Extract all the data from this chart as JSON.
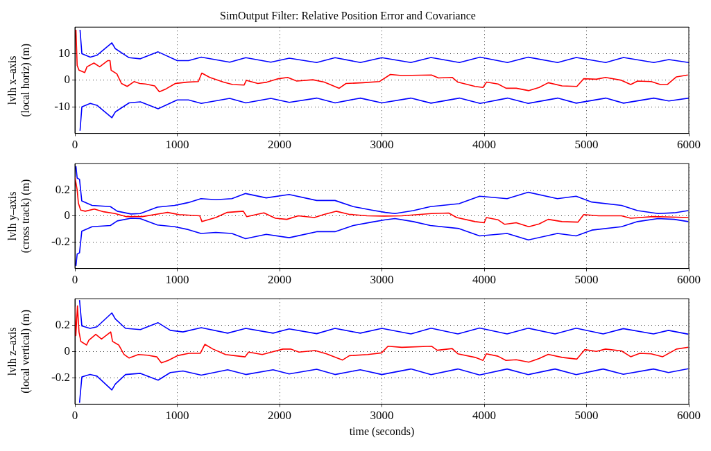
{
  "chart_data": [
    {
      "type": "line",
      "title": "SimOutput Filter: Relative Position Error and Covariance",
      "ylabel": "lvlh x–axis\n(local horiz) (m)",
      "xlim": [
        0,
        6000
      ],
      "xticks": [
        0,
        1000,
        2000,
        3000,
        4000,
        5000,
        6000
      ],
      "ylim": [
        -20,
        20
      ],
      "yticks": [
        -10,
        0,
        10
      ],
      "grid": true,
      "legend": false,
      "series": [
        {
          "color": "#0000ff",
          "x": [
            50,
            68,
            150,
            215,
            361,
            395,
            530,
            640,
            813,
            1000,
            1110,
            1235,
            1513,
            1670,
            1915,
            2095,
            2363,
            2543,
            2790,
            3000,
            3283,
            3480,
            3758,
            3960,
            4228,
            4430,
            4718,
            4900,
            5188,
            5362,
            5658,
            5805,
            6000
          ],
          "values": [
            19,
            10,
            8.7,
            9.4,
            14.1,
            11.9,
            8.5,
            8.1,
            10.7,
            7.4,
            7.4,
            8.7,
            6.8,
            8.5,
            6.8,
            8.3,
            6.7,
            8.5,
            6.7,
            8.5,
            6.7,
            8.6,
            6.7,
            8.7,
            6.7,
            8.7,
            6.7,
            8.6,
            6.7,
            8.6,
            6.7,
            7.8,
            6.7
          ]
        },
        {
          "color": "#0000ff",
          "x": [
            50,
            68,
            150,
            215,
            361,
            395,
            530,
            640,
            813,
            1000,
            1110,
            1235,
            1513,
            1670,
            1915,
            2095,
            2363,
            2543,
            2790,
            3000,
            3283,
            3480,
            3758,
            3960,
            4228,
            4430,
            4718,
            4900,
            5188,
            5362,
            5658,
            5805,
            6000
          ],
          "values": [
            -19,
            -10,
            -8.7,
            -9.4,
            -14.1,
            -11.9,
            -8.5,
            -8.1,
            -10.7,
            -7.4,
            -7.4,
            -8.7,
            -6.8,
            -8.5,
            -6.8,
            -8.3,
            -6.7,
            -8.5,
            -6.7,
            -8.5,
            -6.7,
            -8.6,
            -6.7,
            -8.7,
            -6.7,
            -8.7,
            -6.7,
            -8.6,
            -6.7,
            -8.6,
            -6.7,
            -7.8,
            -6.7
          ]
        },
        {
          "color": "#ff0000",
          "x": [
            10,
            22,
            40,
            96,
            118,
            186,
            242,
            320,
            343,
            354,
            410,
            455,
            511,
            578,
            634,
            690,
            780,
            825,
            892,
            982,
            1094,
            1206,
            1240,
            1318,
            1452,
            1541,
            1653,
            1676,
            1788,
            1877,
            1989,
            2079,
            2168,
            2325,
            2437,
            2583,
            2650,
            2818,
            2975,
            3083,
            3195,
            3485,
            3553,
            3687,
            3743,
            3911,
            3989,
            4023,
            4135,
            4214,
            4314,
            4437,
            4537,
            4627,
            4761,
            4906,
            4973,
            5096,
            5186,
            5342,
            5432,
            5499,
            5633,
            5722,
            5789,
            5879,
            5991
          ],
          "values": [
            19,
            5.6,
            3.8,
            2.9,
            5.1,
            6.5,
            5.1,
            7.4,
            7.4,
            3.8,
            2.4,
            -1.2,
            -2.3,
            -0.5,
            -1.2,
            -1.4,
            -2.1,
            -4.3,
            -3.2,
            -1.2,
            -0.7,
            -0.5,
            2.7,
            1.1,
            -0.7,
            -1.6,
            -1.8,
            0,
            -1.2,
            -0.7,
            0.6,
            1.1,
            -0.3,
            0.2,
            -0.7,
            -3.0,
            -1.2,
            -0.9,
            -0.5,
            2.2,
            1.8,
            2.0,
            0.9,
            1.1,
            -0.7,
            -2.3,
            -2.7,
            -0.7,
            -1.4,
            -3.0,
            -3.0,
            -3.9,
            -2.7,
            -0.9,
            -2.1,
            -2.3,
            0.6,
            0.4,
            1.1,
            0,
            -1.6,
            -0.3,
            -0.5,
            -1.6,
            -1.6,
            1.3,
            2.0
          ]
        }
      ]
    },
    {
      "type": "line",
      "ylabel": "lvlh y–axis\n(cross track) (m)",
      "xlim": [
        0,
        6000
      ],
      "xticks": [
        0,
        1000,
        2000,
        3000,
        4000,
        5000,
        6000
      ],
      "ylim": [
        -0.4,
        0.4
      ],
      "yticks": [
        -0.2,
        0,
        0.2
      ],
      "grid": true,
      "legend": false,
      "series": [
        {
          "color": "#0000ff",
          "x": [
            10,
            22,
            45,
            67,
            168,
            347,
            414,
            548,
            638,
            806,
            974,
            1108,
            1232,
            1377,
            1534,
            1668,
            1870,
            2094,
            2363,
            2542,
            2721,
            2900,
            3034,
            3128,
            3307,
            3474,
            3754,
            3955,
            4224,
            4430,
            4716,
            4899,
            5052,
            5342,
            5499,
            5700,
            5857,
            5995
          ],
          "values": [
            0.38,
            0.29,
            0.28,
            0.116,
            0.081,
            0.072,
            0.037,
            0.016,
            0.019,
            0.068,
            0.081,
            0.103,
            0.133,
            0.125,
            0.133,
            0.172,
            0.139,
            0.165,
            0.119,
            0.119,
            0.072,
            0.046,
            0.028,
            0.019,
            0.042,
            0.072,
            0.095,
            0.151,
            0.133,
            0.182,
            0.133,
            0.151,
            0.107,
            0.081,
            0.042,
            0.019,
            0.025,
            0.042
          ]
        },
        {
          "color": "#0000ff",
          "x": [
            10,
            22,
            45,
            67,
            168,
            347,
            414,
            548,
            638,
            806,
            974,
            1108,
            1232,
            1377,
            1534,
            1668,
            1870,
            2094,
            2363,
            2542,
            2721,
            2900,
            3034,
            3128,
            3307,
            3474,
            3754,
            3955,
            4224,
            4430,
            4716,
            4899,
            5052,
            5342,
            5499,
            5700,
            5857,
            5995
          ],
          "values": [
            -0.38,
            -0.29,
            -0.28,
            -0.116,
            -0.081,
            -0.072,
            -0.037,
            -0.016,
            -0.019,
            -0.068,
            -0.081,
            -0.103,
            -0.133,
            -0.125,
            -0.133,
            -0.172,
            -0.139,
            -0.165,
            -0.119,
            -0.119,
            -0.072,
            -0.046,
            -0.028,
            -0.019,
            -0.042,
            -0.072,
            -0.095,
            -0.151,
            -0.133,
            -0.182,
            -0.133,
            -0.151,
            -0.107,
            -0.081,
            -0.042,
            -0.019,
            -0.025,
            -0.042
          ]
        },
        {
          "color": "#ff0000",
          "x": [
            0,
            22,
            34,
            56,
            101,
            190,
            280,
            392,
            503,
            660,
            839,
            906,
            1018,
            1220,
            1242,
            1377,
            1489,
            1646,
            1679,
            1847,
            1959,
            2071,
            2183,
            2340,
            2430,
            2553,
            2676,
            2855,
            3023,
            3195,
            3485,
            3653,
            3732,
            3911,
            4000,
            4022,
            4134,
            4201,
            4313,
            4436,
            4537,
            4626,
            4761,
            4917,
            4973,
            5118,
            5342,
            5432,
            5655,
            5995
          ],
          "values": [
            0.3,
            0.2,
            0.098,
            0.046,
            0.037,
            0.054,
            0.033,
            0.019,
            -0.004,
            -0.004,
            0.019,
            0.028,
            0.011,
            0.002,
            -0.042,
            -0.011,
            0.028,
            0.037,
            -0.004,
            0.025,
            -0.016,
            -0.025,
            0.002,
            -0.011,
            0.011,
            0.037,
            0.014,
            0.002,
            0,
            0.002,
            0.019,
            0.023,
            -0.011,
            -0.042,
            -0.051,
            -0.011,
            -0.028,
            -0.063,
            -0.051,
            -0.081,
            -0.06,
            -0.025,
            -0.042,
            -0.046,
            0.011,
            0.002,
            0.002,
            -0.016,
            -0.004,
            -0.011
          ]
        }
      ]
    },
    {
      "type": "line",
      "ylabel": "lvlh z–axis\n(local vertical) (m)",
      "xlabel": "time (seconds)",
      "xlim": [
        0,
        6000
      ],
      "xticks": [
        0,
        1000,
        2000,
        3000,
        4000,
        5000,
        6000
      ],
      "ylim": [
        -0.4,
        0.4
      ],
      "yticks": [
        -0.2,
        0,
        0.2
      ],
      "grid": true,
      "legend": false,
      "series": [
        {
          "color": "#0000ff",
          "x": [
            45,
            68,
            148,
            215,
            361,
            395,
            495,
            640,
            813,
            933,
            1056,
            1235,
            1493,
            1670,
            1937,
            2094,
            2363,
            2542,
            2789,
            3000,
            3284,
            3481,
            3743,
            3955,
            4224,
            4430,
            4693,
            4899,
            5163,
            5360,
            5655,
            5801,
            5995
          ],
          "values": [
            0.39,
            0.193,
            0.175,
            0.187,
            0.292,
            0.247,
            0.175,
            0.166,
            0.218,
            0.16,
            0.148,
            0.18,
            0.139,
            0.175,
            0.139,
            0.171,
            0.135,
            0.175,
            0.139,
            0.175,
            0.133,
            0.176,
            0.133,
            0.178,
            0.133,
            0.176,
            0.133,
            0.176,
            0.133,
            0.173,
            0.133,
            0.16,
            0.131
          ]
        },
        {
          "color": "#0000ff",
          "x": [
            45,
            68,
            148,
            215,
            361,
            395,
            495,
            640,
            813,
            933,
            1056,
            1235,
            1493,
            1670,
            1937,
            2094,
            2363,
            2542,
            2789,
            3000,
            3284,
            3481,
            3743,
            3955,
            4224,
            4430,
            4693,
            4899,
            5163,
            5360,
            5655,
            5801,
            5995
          ],
          "values": [
            -0.39,
            -0.193,
            -0.175,
            -0.187,
            -0.292,
            -0.247,
            -0.175,
            -0.166,
            -0.218,
            -0.16,
            -0.148,
            -0.18,
            -0.139,
            -0.175,
            -0.139,
            -0.171,
            -0.135,
            -0.175,
            -0.139,
            -0.175,
            -0.133,
            -0.176,
            -0.133,
            -0.178,
            -0.133,
            -0.176,
            -0.133,
            -0.176,
            -0.133,
            -0.173,
            -0.133,
            -0.16,
            -0.131
          ]
        },
        {
          "color": "#ff0000",
          "x": [
            0,
            9,
            25,
            40,
            58,
            114,
            136,
            204,
            260,
            350,
            368,
            428,
            480,
            530,
            620,
            710,
            800,
            845,
            912,
            1002,
            1114,
            1226,
            1270,
            1349,
            1472,
            1562,
            1663,
            1697,
            1831,
            1921,
            2033,
            2111,
            2190,
            2347,
            2459,
            2616,
            2683,
            2863,
            2997,
            3060,
            3195,
            3485,
            3541,
            3687,
            3743,
            3911,
            3989,
            4022,
            4134,
            4213,
            4313,
            4436,
            4537,
            4626,
            4761,
            4906,
            4984,
            5096,
            5186,
            5342,
            5432,
            5521,
            5633,
            5745,
            5879,
            5995
          ],
          "values": [
            0.34,
            0.12,
            0.346,
            0.148,
            0.076,
            0.049,
            0.085,
            0.13,
            0.094,
            0.148,
            0.076,
            0.049,
            -0.023,
            -0.05,
            -0.023,
            -0.029,
            -0.041,
            -0.086,
            -0.068,
            -0.032,
            -0.014,
            -0.014,
            0.054,
            0.018,
            -0.023,
            -0.032,
            -0.041,
            -0.005,
            -0.023,
            -0.005,
            0.018,
            0.018,
            -0.005,
            0.007,
            -0.018,
            -0.065,
            -0.032,
            -0.023,
            -0.011,
            0.04,
            0.031,
            0.04,
            0.009,
            0.022,
            -0.018,
            -0.045,
            -0.068,
            -0.018,
            -0.036,
            -0.068,
            -0.063,
            -0.081,
            -0.054,
            -0.022,
            -0.045,
            -0.058,
            0.014,
            0,
            0.018,
            0.004,
            -0.04,
            -0.014,
            -0.018,
            -0.04,
            0.018,
            0.032
          ]
        }
      ]
    }
  ]
}
